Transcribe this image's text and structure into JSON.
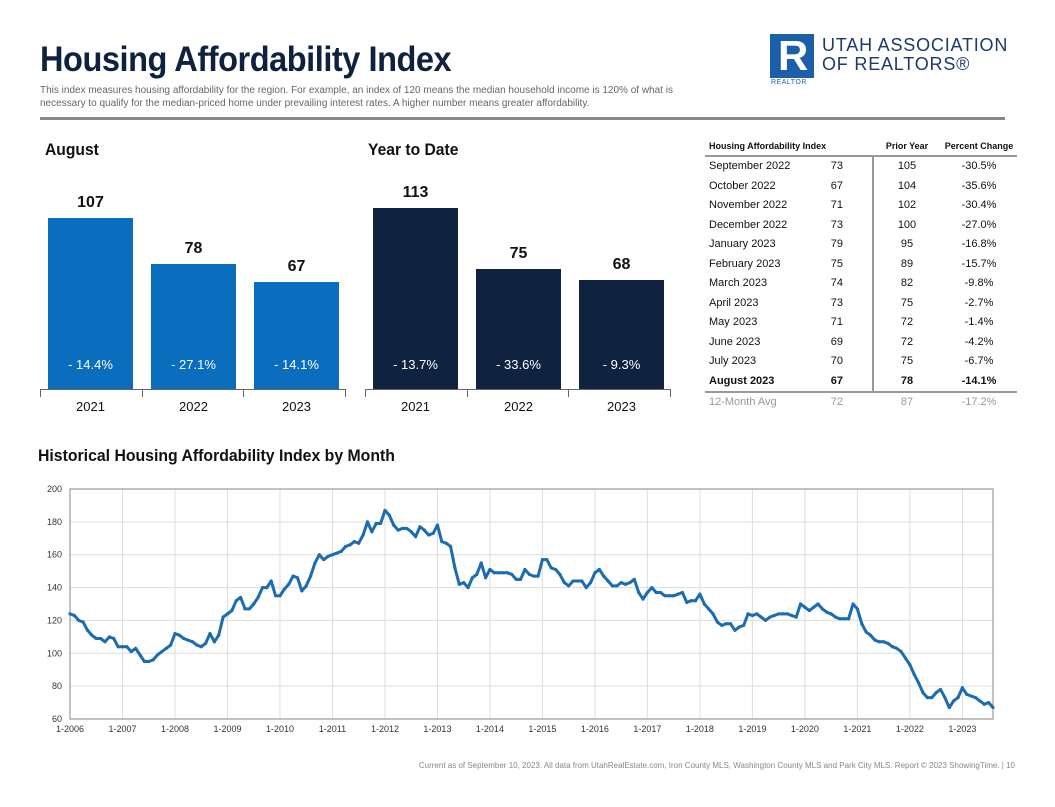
{
  "header": {
    "title": "Housing Affordability Index",
    "subtitle": "This index measures housing affordability for the region. For example, an index of 120 means the median household income is 120% of what is necessary to qualify for the median-priced home under prevailing interest rates. A higher number means greater affordability.",
    "logo": {
      "mark": "R",
      "small_text": "REALTOR",
      "line1": "UTAH ASSOCIATION",
      "line2": "OF REALTORS®"
    }
  },
  "colors": {
    "title": "#0e2240",
    "month_bars": "#0b6dbd",
    "ytd_bars": "#0f2341",
    "line": "#1b6cb0"
  },
  "chart_data": [
    {
      "type": "bar",
      "title": "August",
      "categories": [
        "2021",
        "2022",
        "2023"
      ],
      "values": [
        107,
        78,
        67
      ],
      "changes": [
        "- 14.4%",
        "- 27.1%",
        "- 14.1%"
      ]
    },
    {
      "type": "bar",
      "title": "Year to Date",
      "categories": [
        "2021",
        "2022",
        "2023"
      ],
      "values": [
        113,
        75,
        68
      ],
      "changes": [
        "- 13.7%",
        "- 33.6%",
        "- 9.3%"
      ]
    },
    {
      "type": "line",
      "title": "Historical Housing Affordability Index by Month",
      "ylim": [
        60,
        200
      ],
      "yticks": [
        60,
        80,
        100,
        120,
        140,
        160,
        180,
        200
      ],
      "xticks": [
        "1-2006",
        "1-2007",
        "1-2008",
        "1-2009",
        "1-2010",
        "1-2011",
        "1-2012",
        "1-2013",
        "1-2014",
        "1-2015",
        "1-2016",
        "1-2017",
        "1-2018",
        "1-2019",
        "1-2020",
        "1-2021",
        "1-2022",
        "1-2023"
      ],
      "grid": true,
      "start": "1-2006",
      "end": "8-2023",
      "values": [
        124,
        123,
        120,
        119,
        114,
        111,
        109,
        109,
        107,
        110,
        109,
        104,
        104,
        104,
        101,
        103,
        99,
        95,
        95,
        96,
        99,
        101,
        103,
        105,
        112,
        111,
        109,
        108,
        107,
        105,
        104,
        106,
        112,
        107,
        111,
        122,
        124,
        126,
        132,
        134,
        127,
        127,
        130,
        134,
        140,
        140,
        144,
        135,
        135,
        139,
        142,
        147,
        146,
        138,
        141,
        147,
        155,
        160,
        157,
        159,
        160,
        161,
        162,
        165,
        166,
        168,
        167,
        172,
        180,
        174,
        179,
        179,
        187,
        184,
        178,
        175,
        176,
        176,
        174,
        171,
        177,
        175,
        172,
        173,
        178,
        168,
        167,
        165,
        152,
        142,
        143,
        140,
        146,
        148,
        155,
        146,
        151,
        149,
        149,
        149,
        149,
        148,
        145,
        145,
        151,
        148,
        147,
        147,
        157,
        157,
        152,
        151,
        148,
        143,
        141,
        144,
        144,
        144,
        140,
        143,
        149,
        151,
        147,
        144,
        141,
        141,
        143,
        142,
        143,
        145,
        137,
        133,
        137,
        140,
        137,
        137,
        135,
        135,
        135,
        136,
        137,
        131,
        132,
        132,
        136,
        130,
        127,
        124,
        119,
        117,
        118,
        118,
        114,
        116,
        117,
        124,
        123,
        124,
        122,
        120,
        122,
        123,
        124,
        124,
        124,
        123,
        122,
        130,
        128,
        126,
        128,
        130,
        127,
        125,
        124,
        122,
        121,
        121,
        121,
        130,
        127,
        118,
        113,
        111,
        108,
        107,
        107,
        106,
        104,
        103,
        101,
        97,
        93,
        87,
        82,
        76,
        73,
        73,
        76,
        78,
        73,
        67,
        71,
        73,
        79,
        75,
        74,
        73,
        71,
        69,
        70,
        67
      ]
    }
  ],
  "table": {
    "headers": [
      "Housing Affordability Index",
      "",
      "Prior Year",
      "Percent Change"
    ],
    "rows": [
      [
        "September 2022",
        "73",
        "105",
        "-30.5%"
      ],
      [
        "October 2022",
        "67",
        "104",
        "-35.6%"
      ],
      [
        "November 2022",
        "71",
        "102",
        "-30.4%"
      ],
      [
        "December 2022",
        "73",
        "100",
        "-27.0%"
      ],
      [
        "January 2023",
        "79",
        "95",
        "-16.8%"
      ],
      [
        "February 2023",
        "75",
        "89",
        "-15.7%"
      ],
      [
        "March 2023",
        "74",
        "82",
        "-9.8%"
      ],
      [
        "April 2023",
        "73",
        "75",
        "-2.7%"
      ],
      [
        "May 2023",
        "71",
        "72",
        "-1.4%"
      ],
      [
        "June 2023",
        "69",
        "72",
        "-4.2%"
      ],
      [
        "July 2023",
        "70",
        "75",
        "-6.7%"
      ],
      [
        "August 2023",
        "67",
        "78",
        "-14.1%"
      ]
    ],
    "average": [
      "12-Month Avg",
      "72",
      "87",
      "-17.2%"
    ]
  },
  "footer": "Current as of September 10, 2023. All data from UtahRealEstate.com, Iron County MLS, Washington County MLS and Park City MLS. Report © 2023 ShowingTime.  |  10"
}
